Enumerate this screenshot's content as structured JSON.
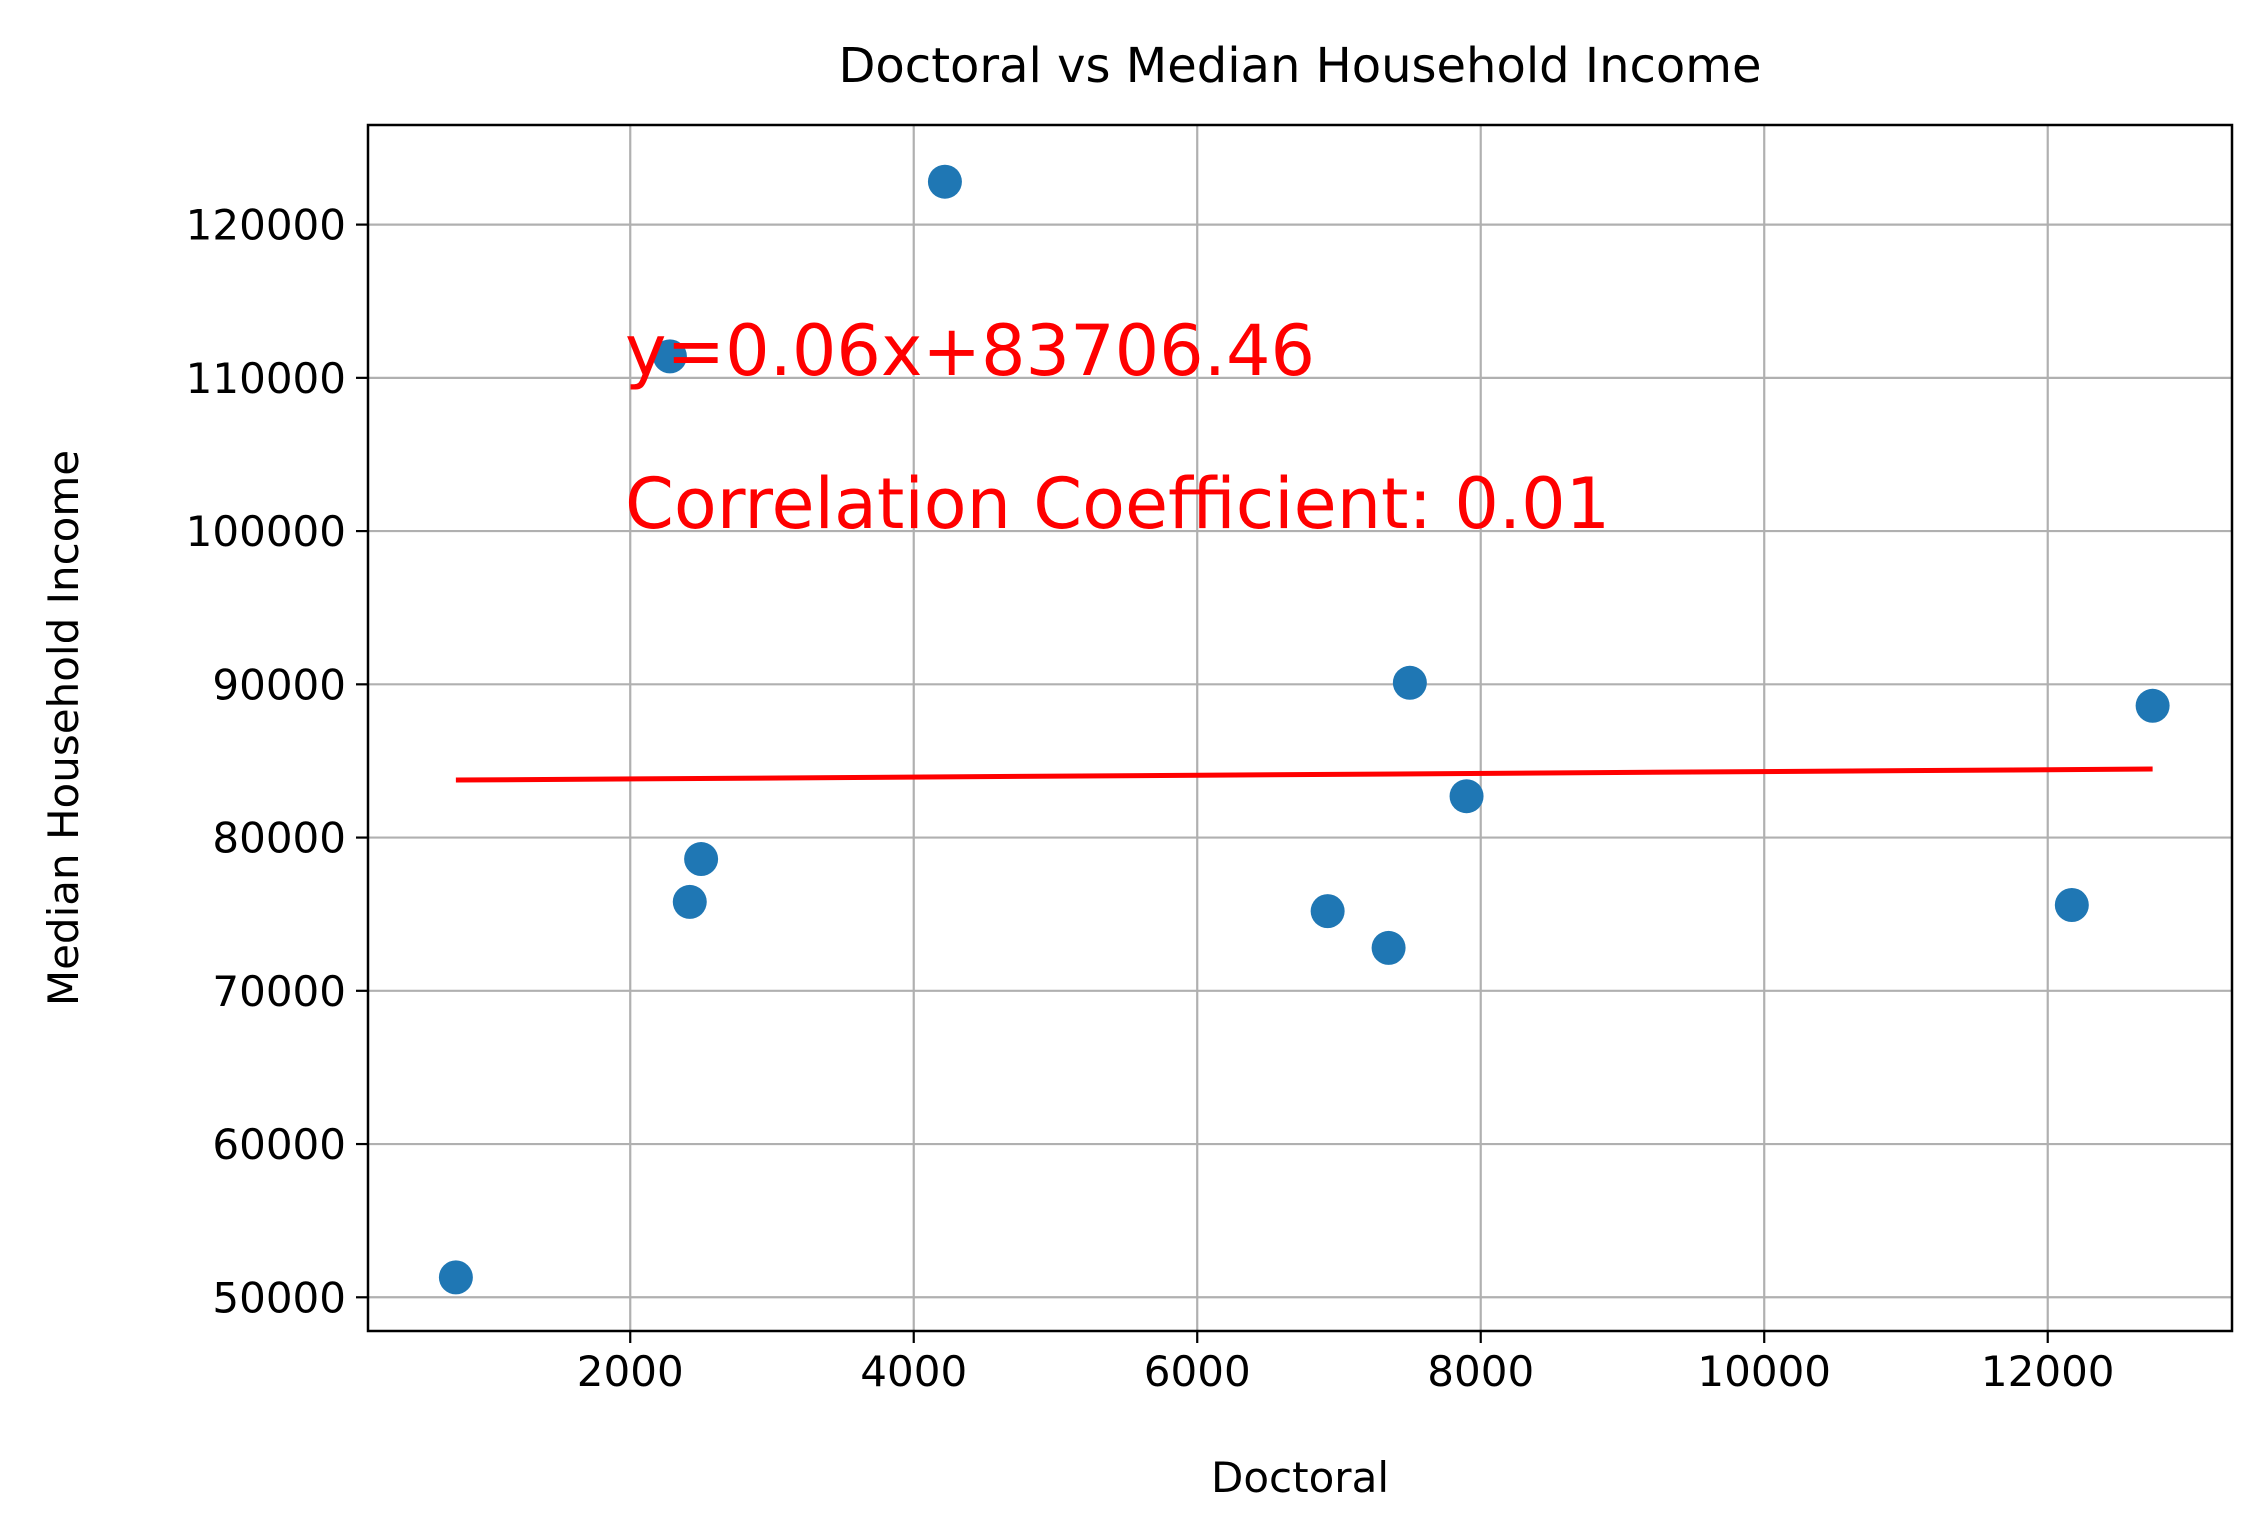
{
  "chart_data": {
    "type": "scatter",
    "title": "Doctoral vs Median Household Income",
    "xlabel": "Doctoral",
    "ylabel": "Median Household Income",
    "xlim": [
      150,
      13300
    ],
    "ylim": [
      47800,
      126500
    ],
    "xticks": [
      2000,
      4000,
      6000,
      8000,
      10000,
      12000
    ],
    "yticks": [
      50000,
      60000,
      70000,
      80000,
      90000,
      100000,
      110000,
      120000
    ],
    "grid": true,
    "points": [
      {
        "x": 770,
        "y": 51300
      },
      {
        "x": 2280,
        "y": 111400
      },
      {
        "x": 2420,
        "y": 75800
      },
      {
        "x": 2500,
        "y": 78600
      },
      {
        "x": 4220,
        "y": 122800
      },
      {
        "x": 6920,
        "y": 75200
      },
      {
        "x": 7350,
        "y": 72800
      },
      {
        "x": 7500,
        "y": 90100
      },
      {
        "x": 7900,
        "y": 82700
      },
      {
        "x": 12170,
        "y": 75600
      },
      {
        "x": 12740,
        "y": 88600
      }
    ],
    "regression": {
      "slope": 0.06,
      "intercept": 83706.46,
      "x_range": [
        770,
        12740
      ],
      "equation_label": "y=0.06x+83706.46",
      "correlation_label": "Correlation Coefficient: 0.01"
    },
    "colors": {
      "points": "#1f77b4",
      "regression": "#ff0000",
      "grid": "#b0b0b0"
    }
  }
}
